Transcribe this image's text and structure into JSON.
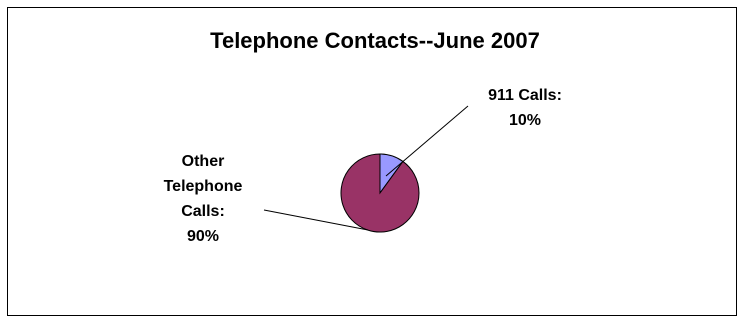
{
  "chart_data": {
    "type": "pie",
    "title": "Telephone Contacts--June 2007",
    "slices": [
      {
        "label_lines": [
          "911 Calls:",
          "10%"
        ],
        "value": 10,
        "color": "#9999ff"
      },
      {
        "label_lines": [
          "Other",
          "Telephone",
          "Calls:",
          "90%"
        ],
        "value": 90,
        "color": "#993366"
      }
    ],
    "legend": "none"
  }
}
